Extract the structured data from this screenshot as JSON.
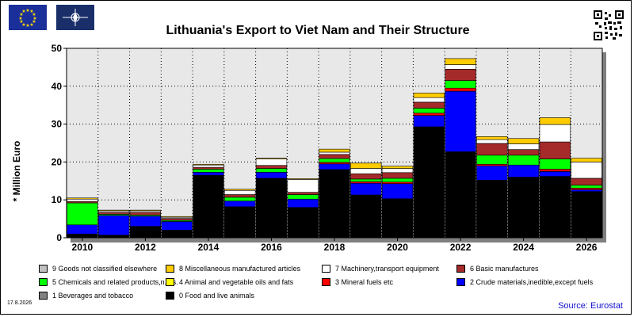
{
  "header": {
    "eu_flag_icon": "eu-flag-icon",
    "nato_flag_icon": "nato-flag-icon",
    "qr_icon": "qr-code-icon"
  },
  "footer": {
    "date": "17.8.2026",
    "source": "Source: Eurostat"
  },
  "chart_data": {
    "type": "bar",
    "stacked": true,
    "title": "Lithuania's Export to Viet Nam and Their Structure",
    "xlabel": "",
    "ylabel": "* Million Euro",
    "ylim": [
      0,
      50
    ],
    "yticks": [
      0,
      10,
      20,
      30,
      40,
      50
    ],
    "x_tick_labels": [
      "2010",
      "2012",
      "2014",
      "2016",
      "2018",
      "2020",
      "2022",
      "2024",
      "2026"
    ],
    "grid": true,
    "legend_position": "bottom",
    "categories": [
      "2010",
      "2011",
      "2012",
      "2013",
      "2014",
      "2015",
      "2016",
      "2017",
      "2018",
      "2019",
      "2020",
      "2021",
      "2022",
      "2023",
      "2024",
      "2025",
      "2026"
    ],
    "series": [
      {
        "name": "0 Food and live animals",
        "color": "#000000",
        "values": [
          1.0,
          0.7,
          3.0,
          2.0,
          16.5,
          8.2,
          15.7,
          8.0,
          18.0,
          11.3,
          10.3,
          29.3,
          22.7,
          15.2,
          16.0,
          16.2,
          12.2
        ]
      },
      {
        "name": "1 Beverages and tobacco",
        "color": "#808080",
        "values": [
          0,
          0,
          0,
          0,
          0,
          0,
          0,
          0,
          0,
          0,
          0,
          0,
          0,
          0,
          0,
          0,
          0
        ]
      },
      {
        "name": "2 Crude materials,inedible,except fuels",
        "color": "#0000ff",
        "values": [
          2.4,
          5.2,
          2.7,
          2.3,
          0.8,
          1.5,
          1.6,
          2.2,
          1.5,
          3.1,
          4.0,
          3.0,
          16.0,
          3.8,
          3.2,
          1.3,
          0.5
        ]
      },
      {
        "name": "3 Mineral fuels etc",
        "color": "#ff0000",
        "values": [
          0,
          0,
          0,
          0,
          0,
          0,
          0,
          0,
          0.4,
          0.4,
          0.4,
          0.6,
          0.8,
          0.4,
          0,
          0.6,
          0.4
        ]
      },
      {
        "name": "4 Animal and vegetable oils and fats",
        "color": "#ffff00",
        "values": [
          0,
          0,
          0,
          0,
          0,
          0,
          0,
          0,
          0,
          0,
          0,
          0,
          0,
          0,
          0,
          0,
          0
        ]
      },
      {
        "name": "5 Chemicals and related products,n.e.s.",
        "color": "#00ff00",
        "values": [
          5.8,
          0.3,
          0.3,
          0.3,
          0.8,
          1.0,
          1.0,
          1.2,
          1.0,
          0.7,
          1.0,
          1.3,
          2.0,
          2.4,
          2.6,
          2.7,
          0.8
        ]
      },
      {
        "name": "6 Basic manufactures",
        "color": "#a52a2a",
        "values": [
          0.4,
          0.5,
          0.7,
          0.5,
          0.5,
          0.7,
          0.8,
          0.6,
          1.1,
          1.4,
          1.5,
          1.6,
          3.0,
          3.1,
          1.5,
          4.5,
          1.8
        ]
      },
      {
        "name": "7 Machinery,transport equipment",
        "color": "#ffffff",
        "values": [
          0.6,
          0.4,
          0.4,
          0.3,
          0.6,
          1.1,
          1.7,
          3.4,
          0.6,
          1.4,
          1.1,
          1.2,
          1.2,
          1.0,
          1.5,
          4.6,
          4.3
        ]
      },
      {
        "name": "8 Miscellaneous manufactured articles",
        "color": "#ffcc00",
        "values": [
          0.3,
          0.2,
          0.2,
          0.2,
          0.2,
          0.3,
          0.2,
          0.2,
          0.8,
          1.4,
          0.6,
          1.2,
          1.6,
          0.8,
          1.4,
          1.8,
          1.0
        ]
      },
      {
        "name": "9 Goods not classified elsewhere",
        "color": "#c0c0c0",
        "values": [
          0,
          0,
          0,
          0,
          0,
          0,
          0,
          0,
          0,
          0,
          0,
          0,
          0,
          0,
          0,
          0,
          0
        ]
      }
    ]
  },
  "legend": {
    "rows": [
      [
        {
          "label": "9 Goods not classified elsewhere",
          "color": "#c0c0c0"
        },
        {
          "label": "8 Miscellaneous manufactured articles",
          "color": "#ffcc00"
        },
        {
          "label": "7 Machinery,transport equipment",
          "color": "#ffffff"
        },
        {
          "label": "6 Basic manufactures",
          "color": "#a52a2a"
        }
      ],
      [
        {
          "label": "5 Chemicals and related products,n.e.s.",
          "color": "#00ff00"
        },
        {
          "label": "4 Animal and vegetable oils and fats",
          "color": "#ffff00"
        },
        {
          "label": "3 Mineral fuels etc",
          "color": "#ff0000"
        },
        {
          "label": "2 Crude materials,inedible,except fuels",
          "color": "#0000ff"
        }
      ],
      [
        {
          "label": "1 Beverages and tobacco",
          "color": "#808080"
        },
        {
          "label": "0 Food and live animals",
          "color": "#000000"
        }
      ]
    ]
  }
}
